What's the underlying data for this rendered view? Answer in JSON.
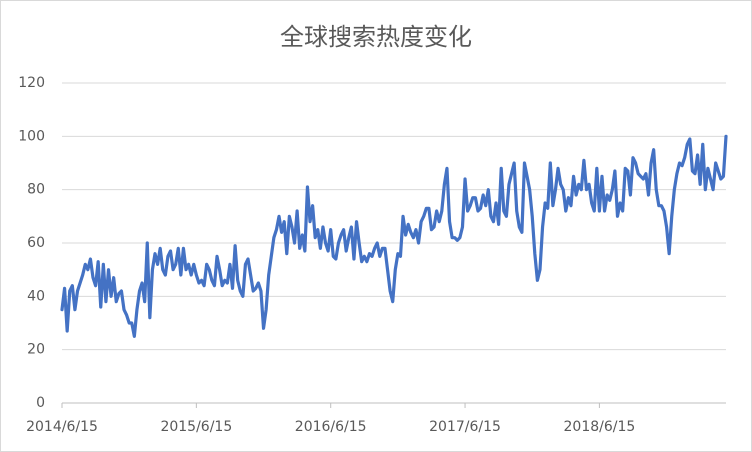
{
  "chart_data": {
    "type": "line",
    "title": "全球搜索热度变化",
    "categories": [
      "2014/6/15",
      null,
      null,
      null,
      null,
      null,
      null,
      null,
      null,
      null,
      null,
      null,
      null,
      null,
      null,
      null,
      null,
      null,
      null,
      null,
      null,
      null,
      null,
      null,
      null,
      null,
      null,
      null,
      null,
      null,
      null,
      null,
      null,
      null,
      null,
      null,
      null,
      null,
      null,
      null,
      null,
      null,
      null,
      null,
      null,
      null,
      null,
      null,
      null,
      null,
      null,
      null,
      "2015/6/15",
      null,
      null,
      null,
      null,
      null,
      null,
      null,
      null,
      null,
      null,
      null,
      null,
      null,
      null,
      null,
      null,
      null,
      null,
      null,
      null,
      null,
      null,
      null,
      null,
      null,
      null,
      null,
      null,
      null,
      null,
      null,
      null,
      null,
      null,
      null,
      null,
      null,
      null,
      null,
      null,
      null,
      null,
      null,
      null,
      null,
      null,
      null,
      null,
      null,
      null,
      null,
      "2016/6/15",
      null,
      null,
      null,
      null,
      null,
      null,
      null,
      null,
      null,
      null,
      null,
      null,
      null,
      null,
      null,
      null,
      null,
      null,
      null,
      null,
      null,
      null,
      null,
      null,
      null,
      null,
      null,
      null,
      null,
      null,
      null,
      null,
      null,
      null,
      null,
      null,
      null,
      null,
      null,
      null,
      null,
      null,
      null,
      null,
      null,
      null,
      null,
      null,
      null,
      null,
      null,
      "2017/6/15",
      null,
      null,
      null,
      null,
      null,
      null,
      null,
      null,
      null,
      null,
      null,
      null,
      null,
      null,
      null,
      null,
      null,
      null,
      null,
      null,
      null,
      null,
      null,
      null,
      null,
      null,
      null,
      null,
      null,
      null,
      null,
      null,
      null,
      null,
      null,
      null,
      null,
      null,
      null,
      null,
      null,
      null,
      null,
      null,
      null,
      null,
      null,
      null,
      null,
      null,
      null,
      "2018/6/15",
      null,
      null,
      null,
      null,
      null,
      null,
      null,
      null,
      null,
      null,
      null,
      null,
      null,
      null,
      null,
      null,
      null,
      null,
      null,
      null,
      null,
      null,
      null,
      null,
      null,
      null,
      null,
      null,
      null,
      null,
      null,
      null,
      null,
      null,
      null,
      null,
      null,
      null,
      null,
      null,
      null,
      null,
      null,
      null,
      null,
      null,
      null,
      null,
      null
    ],
    "values": [
      35,
      43,
      27,
      42,
      44,
      35,
      42,
      45,
      48,
      52,
      50,
      54,
      47,
      44,
      53,
      36,
      52,
      38,
      50,
      40,
      47,
      38,
      41,
      42,
      35,
      33,
      30,
      30,
      25,
      35,
      42,
      45,
      38,
      60,
      32,
      50,
      56,
      52,
      58,
      50,
      48,
      55,
      57,
      50,
      52,
      58,
      48,
      58,
      50,
      52,
      48,
      52,
      48,
      45,
      46,
      44,
      52,
      50,
      46,
      44,
      55,
      50,
      44,
      46,
      45,
      52,
      43,
      59,
      46,
      42,
      40,
      52,
      54,
      48,
      42,
      43,
      45,
      42,
      28,
      35,
      48,
      55,
      62,
      65,
      70,
      64,
      68,
      56,
      70,
      66,
      60,
      72,
      58,
      63,
      57,
      81,
      68,
      74,
      62,
      65,
      58,
      66,
      60,
      57,
      65,
      55,
      54,
      60,
      63,
      65,
      57,
      62,
      66,
      54,
      68,
      60,
      53,
      55,
      53,
      56,
      55,
      58,
      60,
      55,
      58,
      58,
      50,
      42,
      38,
      50,
      56,
      55,
      70,
      63,
      67,
      64,
      62,
      65,
      60,
      68,
      70,
      73,
      73,
      65,
      66,
      72,
      68,
      72,
      82,
      88,
      68,
      62,
      62,
      61,
      62,
      66,
      84,
      72,
      74,
      77,
      77,
      72,
      73,
      78,
      74,
      80,
      70,
      68,
      75,
      67,
      88,
      72,
      70,
      82,
      86,
      90,
      72,
      66,
      64,
      90,
      85,
      80,
      70,
      56,
      46,
      50,
      66,
      75,
      73,
      90,
      74,
      80,
      88,
      82,
      80,
      72,
      77,
      74,
      85,
      78,
      82,
      80,
      91,
      80,
      82,
      75,
      72,
      88,
      72,
      85,
      72,
      78,
      76,
      80,
      87,
      70,
      75,
      72,
      88,
      87,
      78,
      92,
      90,
      86,
      85,
      84,
      86,
      78,
      90,
      95,
      80,
      74,
      74,
      72,
      66,
      56,
      70,
      80,
      86,
      90,
      89,
      92,
      97,
      99,
      87,
      86,
      93,
      82,
      97,
      80,
      88,
      84,
      80,
      90,
      87,
      84,
      85,
      100
    ],
    "color": "#4472c4",
    "ylim": [
      0,
      120
    ],
    "yticks": [
      0,
      20,
      40,
      60,
      80,
      100,
      120
    ],
    "grid": true
  }
}
